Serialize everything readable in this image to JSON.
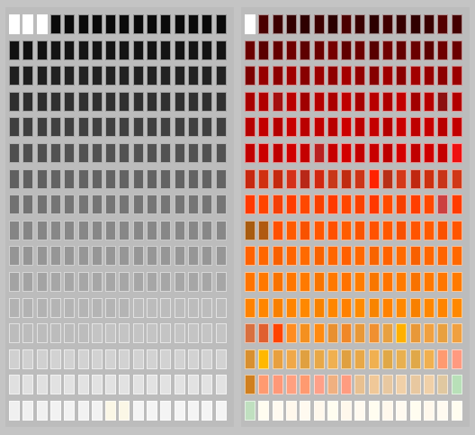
{
  "swatch_panels": [
    {
      "id": "grayscale",
      "rows": [
        [
          "#ffffff",
          "#ffffff",
          "#ffffff",
          "#0a0a0a",
          "#0a0a0a",
          "#0a0a0a",
          "#0a0a0a",
          "#0a0a0a",
          "#0a0a0a",
          "#0a0a0a",
          "#0a0a0a",
          "#0a0a0a",
          "#0a0a0a",
          "#0a0a0a",
          "#0a0a0a",
          "#0a0a0a"
        ],
        [
          "#111111",
          "#111111",
          "#111111",
          "#141414",
          "#141414",
          "#141414",
          "#141414",
          "#141414",
          "#141414",
          "#141414",
          "#141414",
          "#141414",
          "#141414",
          "#141414",
          "#141414",
          "#141414"
        ],
        [
          "#1f1f1f",
          "#1f1f1f",
          "#1f1f1f",
          "#222222",
          "#222222",
          "#222222",
          "#222222",
          "#222222",
          "#222222",
          "#222222",
          "#222222",
          "#222222",
          "#222222",
          "#222222",
          "#222222",
          "#222222"
        ],
        [
          "#2e2e2e",
          "#2e2e2e",
          "#2e2e2e",
          "#303030",
          "#303030",
          "#303030",
          "#303030",
          "#303030",
          "#303030",
          "#303030",
          "#303030",
          "#303030",
          "#303030",
          "#303030",
          "#303030",
          "#303030"
        ],
        [
          "#3f3f3f",
          "#3f3f3f",
          "#3f3f3f",
          "#404040",
          "#404040",
          "#404040",
          "#404040",
          "#404040",
          "#404040",
          "#404040",
          "#404040",
          "#404040",
          "#404040",
          "#404040",
          "#404040",
          "#404040"
        ],
        [
          "#4f4f4f",
          "#4f4f4f",
          "#4f4f4f",
          "#525252",
          "#525252",
          "#525252",
          "#525252",
          "#525252",
          "#525252",
          "#525252",
          "#525252",
          "#525252",
          "#525252",
          "#525252",
          "#525252",
          "#525252"
        ],
        [
          "#606060",
          "#606060",
          "#606060",
          "#636363",
          "#636363",
          "#636363",
          "#636363",
          "#636363",
          "#636363",
          "#636363",
          "#636363",
          "#636363",
          "#636363",
          "#636363",
          "#636363",
          "#636363"
        ],
        [
          "#727272",
          "#727272",
          "#727272",
          "#757575",
          "#757575",
          "#757575",
          "#757575",
          "#757575",
          "#757575",
          "#757575",
          "#757575",
          "#757575",
          "#757575",
          "#757575",
          "#757575",
          "#757575"
        ],
        [
          "#858585",
          "#858585",
          "#858585",
          "#878787",
          "#878787",
          "#878787",
          "#878787",
          "#878787",
          "#878787",
          "#878787",
          "#878787",
          "#878787",
          "#878787",
          "#878787",
          "#878787",
          "#878787"
        ],
        [
          "#959595",
          "#959595",
          "#959595",
          "#969696",
          "#969696",
          "#969696",
          "#969696",
          "#969696",
          "#969696",
          "#969696",
          "#969696",
          "#969696",
          "#969696",
          "#969696",
          "#969696",
          "#969696"
        ],
        [
          "#a3a3a3",
          "#a3a3a3",
          "#a3a3a3",
          "#a6a6a6",
          "#a6a6a6",
          "#a6a6a6",
          "#a6a6a6",
          "#a6a6a6",
          "#a6a6a6",
          "#a6a6a6",
          "#a6a6a6",
          "#a6a6a6",
          "#a6a6a6",
          "#a6a6a6",
          "#a6a6a6",
          "#a6a6a6"
        ],
        [
          "#b2b2b2",
          "#b2b2b2",
          "#b2b2b2",
          "#b4b4b4",
          "#b4b4b4",
          "#b4b4b4",
          "#b4b4b4",
          "#b4b4b4",
          "#b4b4b4",
          "#bcbcbc",
          "#bcbcbc",
          "#bcbcbc",
          "#bcbcbc",
          "#bcbcbc",
          "#bcbcbc",
          "#bcbcbc"
        ],
        [
          "#bcbcbc",
          "#bcbcbc",
          "#bcbcbc",
          "#bcbcbc",
          "#bcbcbc",
          "#bcbcbc",
          "#c4c4c4",
          "#c4c4c4",
          "#c4c4c4",
          "#c4c4c4",
          "#c4c4c4",
          "#c4c4c4",
          "#c4c4c4",
          "#c4c4c4",
          "#c4c4c4",
          "#c4c4c4"
        ],
        [
          "#d0d0d0",
          "#d0d0d0",
          "#d0d0d0",
          "#d2d2d2",
          "#d2d2d2",
          "#d2d2d2",
          "#d2d2d2",
          "#d2d2d2",
          "#d2d2d2",
          "#d2d2d2",
          "#d2d2d2",
          "#d2d2d2",
          "#d2d2d2",
          "#d2d2d2",
          "#d2d2d2",
          "#d2d2d2"
        ],
        [
          "#e0e0e0",
          "#e0e0e0",
          "#e0e0e0",
          "#e2e2e2",
          "#e2e2e2",
          "#e2e2e2",
          "#e2e2e2",
          "#e2e2e2",
          "#e2e2e2",
          "#e2e2e2",
          "#e2e2e2",
          "#e2e2e2",
          "#e2e2e2",
          "#e2e2e2",
          "#e2e2e2",
          "#e2e2e2"
        ],
        [
          "#f0f0f0",
          "#f0f0f0",
          "#f0f0f0",
          "#f2f2f2",
          "#f2f2f2",
          "#f2f2f2",
          "#f2f2f2",
          "#fbf7e6",
          "#fbf7e6",
          "#f4f4f4",
          "#f4f4f4",
          "#f4f4f4",
          "#f4f4f4",
          "#f4f4f4",
          "#f4f4f4",
          "#f4f4f4"
        ]
      ]
    },
    {
      "id": "warm",
      "rows": [
        [
          "#ffffff",
          "#4a0000",
          "#3d0000",
          "#320000",
          "#2e0000",
          "#3c0000",
          "#2a0000",
          "#4a0000",
          "#3a0000",
          "#2c0000",
          "#400000",
          "#360000",
          "#300000",
          "#3a0000",
          "#540000",
          "#440000"
        ],
        [
          "#6a0000",
          "#5a0000",
          "#640000",
          "#6e0000",
          "#5e0000",
          "#6a0000",
          "#760000",
          "#600000",
          "#6c0000",
          "#580000",
          "#700000",
          "#640000",
          "#6a0000",
          "#5c0000",
          "#6e0000",
          "#6a0000"
        ],
        [
          "#7c0000",
          "#960000",
          "#8c0000",
          "#a00000",
          "#880000",
          "#9a0000",
          "#8e0000",
          "#a40000",
          "#920000",
          "#860000",
          "#9e0000",
          "#8a0000",
          "#a20000",
          "#960000",
          "#8c0000",
          "#9a0000"
        ],
        [
          "#a80000",
          "#b00000",
          "#a41010",
          "#ba0000",
          "#a00000",
          "#b40000",
          "#aa0000",
          "#be0000",
          "#a60000",
          "#b80000",
          "#ae0000",
          "#c20000",
          "#a20000",
          "#b60000",
          "#8c1010",
          "#b20000"
        ],
        [
          "#b60000",
          "#c20000",
          "#b40000",
          "#c80000",
          "#ba0000",
          "#c00000",
          "#b80000",
          "#cc0000",
          "#bc0000",
          "#c40000",
          "#b40000",
          "#ca0000",
          "#be0000",
          "#c60000",
          "#b80000",
          "#c20000"
        ],
        [
          "#c00000",
          "#ca0000",
          "#be0000",
          "#d00000",
          "#c40000",
          "#b82020",
          "#c60000",
          "#d20000",
          "#c20000",
          "#c80000",
          "#bc0000",
          "#d40000",
          "#c00000",
          "#ce0000",
          "#c40000",
          "#ee1010"
        ],
        [
          "#c62810",
          "#d03010",
          "#c42a10",
          "#d43018",
          "#b82818",
          "#d02810",
          "#c8381a",
          "#c02c10",
          "#cc3418",
          "#ff2200",
          "#b83018",
          "#d43818",
          "#c02810",
          "#cc3010",
          "#c83418",
          "#d03818"
        ],
        [
          "#ff3a00",
          "#ff4400",
          "#f44008",
          "#ff3c00",
          "#ff4800",
          "#f84000",
          "#ff3a00",
          "#ff4600",
          "#fa4200",
          "#ff3800",
          "#ff4a00",
          "#f64000",
          "#ff3e00",
          "#ff4800",
          "#cc4040",
          "#ff3c00"
        ],
        [
          "#a85c10",
          "#b05a10",
          "#ff5000",
          "#ff5a00",
          "#f85200",
          "#ff5600",
          "#ff5000",
          "#ff5c00",
          "#fa5400",
          "#ff5200",
          "#ff5800",
          "#f85000",
          "#ff5400",
          "#ff5a00",
          "#fa5200",
          "#ff5600"
        ],
        [
          "#ff6200",
          "#ff6600",
          "#f86000",
          "#ff6400",
          "#ff6a00",
          "#f86200",
          "#ff6600",
          "#ff6000",
          "#ff6800",
          "#f86400",
          "#ff6200",
          "#ff6a00",
          "#f86000",
          "#ff6600",
          "#ff6400",
          "#ff6800"
        ],
        [
          "#ff7400",
          "#ff7800",
          "#f87200",
          "#ff7600",
          "#ff7a00",
          "#f87400",
          "#ff7800",
          "#ff7200",
          "#ff7c00",
          "#f87600",
          "#ff7400",
          "#ff7a00",
          "#f87200",
          "#ff7800",
          "#ff7600",
          "#ff7a00"
        ],
        [
          "#ff8200",
          "#ff8600",
          "#f88000",
          "#ff8400",
          "#ff8800",
          "#f88200",
          "#ff8600",
          "#ff8000",
          "#ff8a00",
          "#f88400",
          "#ff8200",
          "#ff8800",
          "#f88000",
          "#ff8600",
          "#ff8400",
          "#ff8800"
        ],
        [
          "#d87040",
          "#e06030",
          "#ff4400",
          "#ff8c20",
          "#f49020",
          "#ff8a10",
          "#e89030",
          "#f08828",
          "#e89838",
          "#f09030",
          "#e8a040",
          "#ffb000",
          "#e89838",
          "#f0a040",
          "#e8a040",
          "#f0a040"
        ],
        [
          "#d89030",
          "#ffb800",
          "#e8a040",
          "#f0a848",
          "#e0a040",
          "#e8a848",
          "#f0b050",
          "#e0a040",
          "#e8a848",
          "#f0b050",
          "#e0a848",
          "#e8b050",
          "#e0a848",
          "#f0b050",
          "#ff9a70",
          "#ff9a80"
        ],
        [
          "#d08020",
          "#ff9a70",
          "#ff9878",
          "#ffa080",
          "#ff9a70",
          "#ffa088",
          "#f0b080",
          "#ff9c80",
          "#e8c090",
          "#f0c898",
          "#e8c8a0",
          "#f0d0a8",
          "#e8c8a0",
          "#f0d0a8",
          "#e0c8a0",
          "#b8e0b8"
        ],
        [
          "#c0e0c0",
          "#fffdf0",
          "#fffaf0",
          "#fff8ec",
          "#fffaf0",
          "#fff8ec",
          "#fffdf0",
          "#fff8ec",
          "#fffaf0",
          "#fffdf0",
          "#fff8ec",
          "#fffaf0",
          "#fffdf0",
          "#fff8ec",
          "#fffaf0",
          "#fffdf0"
        ]
      ]
    }
  ]
}
